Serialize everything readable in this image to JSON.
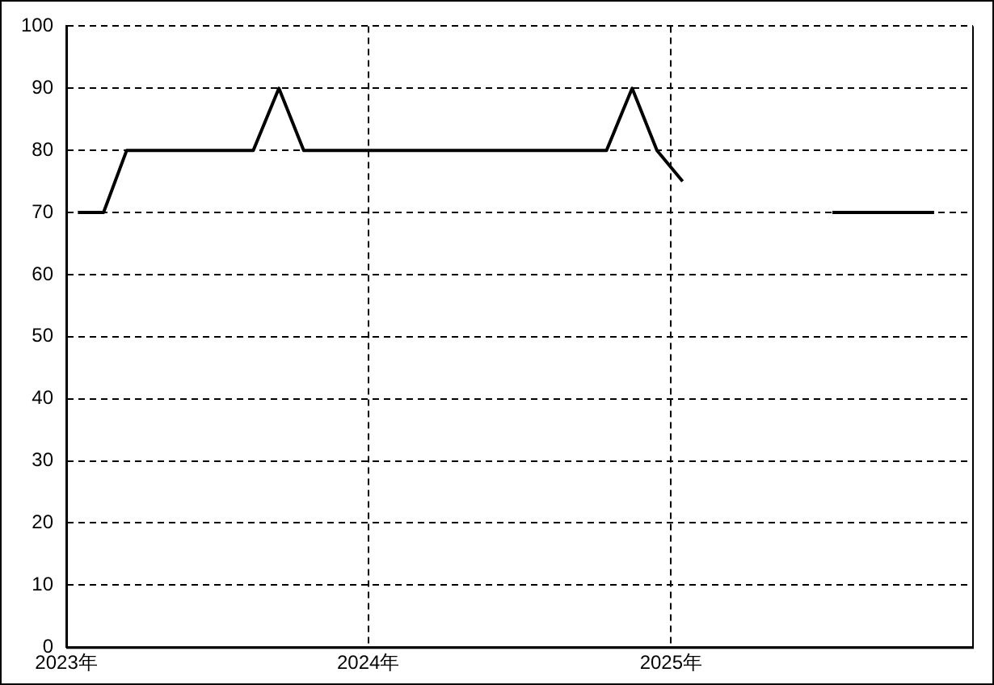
{
  "chart_data": {
    "type": "line",
    "x": [
      "2023-01-15",
      "2023-02-15",
      "2023-03-15",
      "2023-04-15",
      "2023-05-15",
      "2023-06-15",
      "2023-07-15",
      "2023-08-15",
      "2023-09-15",
      "2023-10-15",
      "2023-11-15",
      "2023-12-15",
      "2024-01-15",
      "2024-02-15",
      "2024-03-15",
      "2024-04-15",
      "2024-05-15",
      "2024-06-15",
      "2024-07-15",
      "2024-08-15",
      "2024-09-15",
      "2024-10-15",
      "2024-11-15",
      "2024-12-15",
      "2025-01-15",
      "2025-02-15",
      "2025-03-15",
      "2025-04-15",
      "2025-05-15",
      "2025-06-15",
      "2025-07-15",
      "2025-08-15",
      "2025-09-15",
      "2025-10-15",
      "2025-11-15"
    ],
    "series": [
      {
        "color": "#000000",
        "values": [
          70,
          70,
          80,
          80,
          80,
          80,
          80,
          80,
          90,
          80,
          80,
          80,
          80,
          80,
          80,
          80,
          80,
          80,
          80,
          80,
          80,
          80,
          90,
          80,
          75,
          null,
          null,
          null,
          null,
          null,
          70,
          70,
          70,
          70,
          70
        ]
      }
    ],
    "xlim": [
      "2023-01-01",
      "2026-01-01"
    ],
    "xticks": [
      {
        "value": "2023-01-01",
        "label": "2023年"
      },
      {
        "value": "2024-01-01",
        "label": "2024年"
      },
      {
        "value": "2025-01-01",
        "label": "2025年"
      }
    ],
    "ylim": [
      0,
      100
    ],
    "yticks": [
      0,
      10,
      20,
      30,
      40,
      50,
      60,
      70,
      80,
      90,
      100
    ],
    "grid": true,
    "marker": "none",
    "line_style": "solid"
  }
}
